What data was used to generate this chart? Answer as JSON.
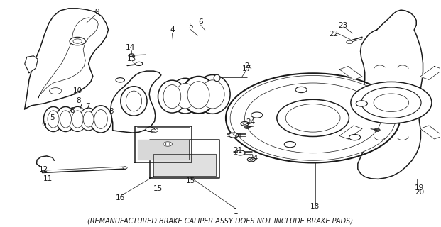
{
  "caption": "(REMANUFACTURED BRAKE CALIPER ASSY DOES NOT INCLUDE BRAKE PADS)",
  "caption_fontsize": 7.0,
  "bg_color": "#ffffff",
  "line_color": "#1a1a1a",
  "label_fontsize": 7.5,
  "fig_width": 6.21,
  "fig_height": 3.2,
  "dpi": 100
}
